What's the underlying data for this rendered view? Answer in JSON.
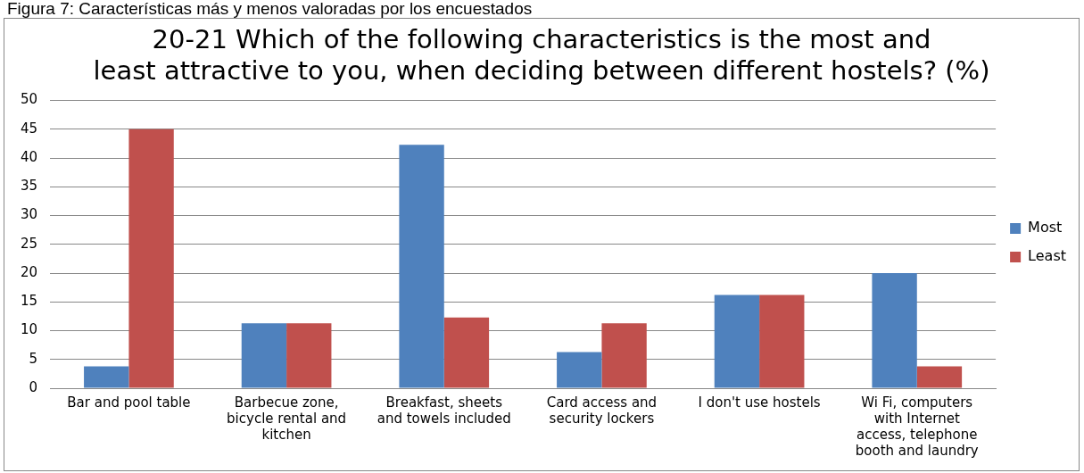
{
  "chart_data": {
    "type": "bar",
    "title": "20-21 Which of the following characteristics is the most and least attractive to you, when deciding between different hostels? (%)",
    "annotations": [
      "Figura 7: Características más y menos valoradas por los encuestados"
    ],
    "categories": [
      "Bar and pool table",
      "Barbecue zone, bicycle rental and kitchen",
      "Breakfast, sheets and towels included",
      "Card access and security lockers",
      "I don't use hostels",
      "Wi Fi, computers with Internet access, telephone booth and laundry"
    ],
    "series": [
      {
        "name": "Most",
        "color": "#4f81bd",
        "values": [
          3.8,
          11.3,
          42.3,
          6.3,
          16.2,
          20.0
        ]
      },
      {
        "name": "Least",
        "color": "#c0504d",
        "values": [
          45.0,
          11.3,
          12.3,
          11.3,
          16.2,
          3.8
        ]
      }
    ],
    "ylim": [
      0,
      50
    ],
    "yticks": [
      0,
      5,
      10,
      15,
      20,
      25,
      30,
      35,
      40,
      45,
      50
    ],
    "grid": "y",
    "legend": "right"
  }
}
